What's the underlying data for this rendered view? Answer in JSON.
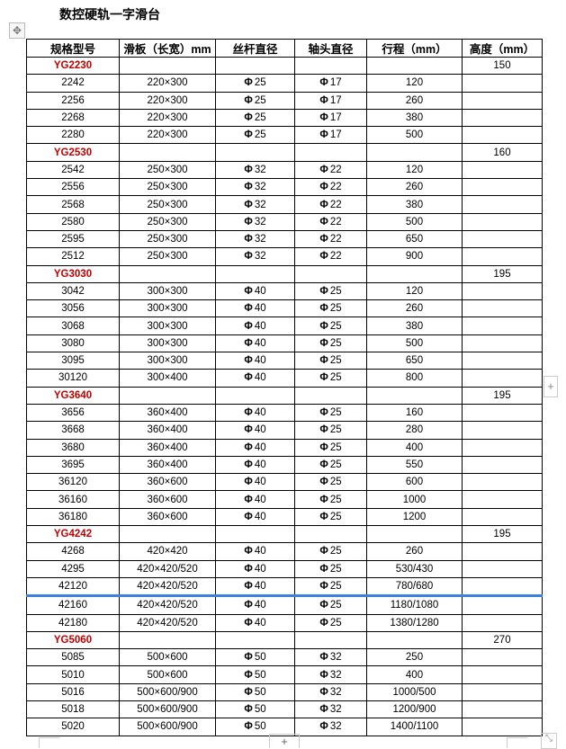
{
  "title": "数控硬轨一字滑台",
  "icons": {
    "move": "move-icon",
    "add_row": "plus-icon",
    "add_col": "plus-icon",
    "resize": "resize-icon"
  },
  "colors": {
    "group": "#c00000",
    "selection": "#3b82e0"
  },
  "phi": "Φ",
  "headers": [
    "规格型号",
    "滑板（长宽）mm",
    "丝杆直径",
    "轴头直径",
    "行程（mm）",
    "高度（mm）"
  ],
  "groups": [
    {
      "model": "YG2230",
      "height": "150",
      "rows": [
        [
          "2242",
          "220×300",
          "25",
          "17",
          "120"
        ],
        [
          "2256",
          "220×300",
          "25",
          "17",
          "260"
        ],
        [
          "2268",
          "220×300",
          "25",
          "17",
          "380"
        ],
        [
          "2280",
          "220×300",
          "25",
          "17",
          "500"
        ]
      ]
    },
    {
      "model": "YG2530",
      "height": "160",
      "rows": [
        [
          "2542",
          "250×300",
          "32",
          "22",
          "120"
        ],
        [
          "2556",
          "250×300",
          "32",
          "22",
          "260"
        ],
        [
          "2568",
          "250×300",
          "32",
          "22",
          "380"
        ],
        [
          "2580",
          "250×300",
          "32",
          "22",
          "500"
        ],
        [
          "2595",
          "250×300",
          "32",
          "22",
          "650"
        ],
        [
          "2512",
          "250×300",
          "32",
          "22",
          "900"
        ]
      ]
    },
    {
      "model": "YG3030",
      "height": "195",
      "rows": [
        [
          "3042",
          "300×300",
          "40",
          "25",
          "120"
        ],
        [
          "3056",
          "300×300",
          "40",
          "25",
          "260"
        ],
        [
          "3068",
          "300×300",
          "40",
          "25",
          "380"
        ],
        [
          "3080",
          "300×300",
          "40",
          "25",
          "500"
        ],
        [
          "3095",
          "300×300",
          "40",
          "25",
          "650"
        ],
        [
          "30120",
          "300×400",
          "40",
          "25",
          "800"
        ]
      ]
    },
    {
      "model": "YG3640",
      "height": "195",
      "rows": [
        [
          "3656",
          "360×400",
          "40",
          "25",
          "160"
        ],
        [
          "3668",
          "360×400",
          "40",
          "25",
          "280"
        ],
        [
          "3680",
          "360×400",
          "40",
          "25",
          "400"
        ],
        [
          "3695",
          "360×400",
          "40",
          "25",
          "550"
        ],
        [
          "36120",
          "360×600",
          "40",
          "25",
          "600"
        ],
        [
          "36160",
          "360×600",
          "40",
          "25",
          "1000"
        ],
        [
          "36180",
          "360×600",
          "40",
          "25",
          "1200"
        ]
      ]
    },
    {
      "model": "YG4242",
      "height": "195",
      "rows": [
        [
          "4268",
          "420×420",
          "40",
          "25",
          "260"
        ],
        [
          "4295",
          "420×420/520",
          "40",
          "25",
          "530/430"
        ],
        [
          "42120",
          "420×420/520",
          "40",
          "25",
          "780/680"
        ],
        [
          "42160",
          "420×420/520",
          "40",
          "25",
          "1180/1080"
        ],
        [
          "42180",
          "420×420/520",
          "40",
          "25",
          "1380/1280"
        ]
      ]
    },
    {
      "model": "YG5060",
      "height": "270",
      "rows": [
        [
          "5085",
          "500×600",
          "50",
          "32",
          "250"
        ],
        [
          "5010",
          "500×600",
          "50",
          "32",
          "400"
        ],
        [
          "5016",
          "500×600/900",
          "50",
          "32",
          "1000/500"
        ],
        [
          "5018",
          "500×600/900",
          "50",
          "32",
          "1200/900"
        ],
        [
          "5020",
          "500×600/900",
          "50",
          "32",
          "1400/1100"
        ]
      ]
    }
  ],
  "selected_row_model": "42120",
  "add_label": "+"
}
